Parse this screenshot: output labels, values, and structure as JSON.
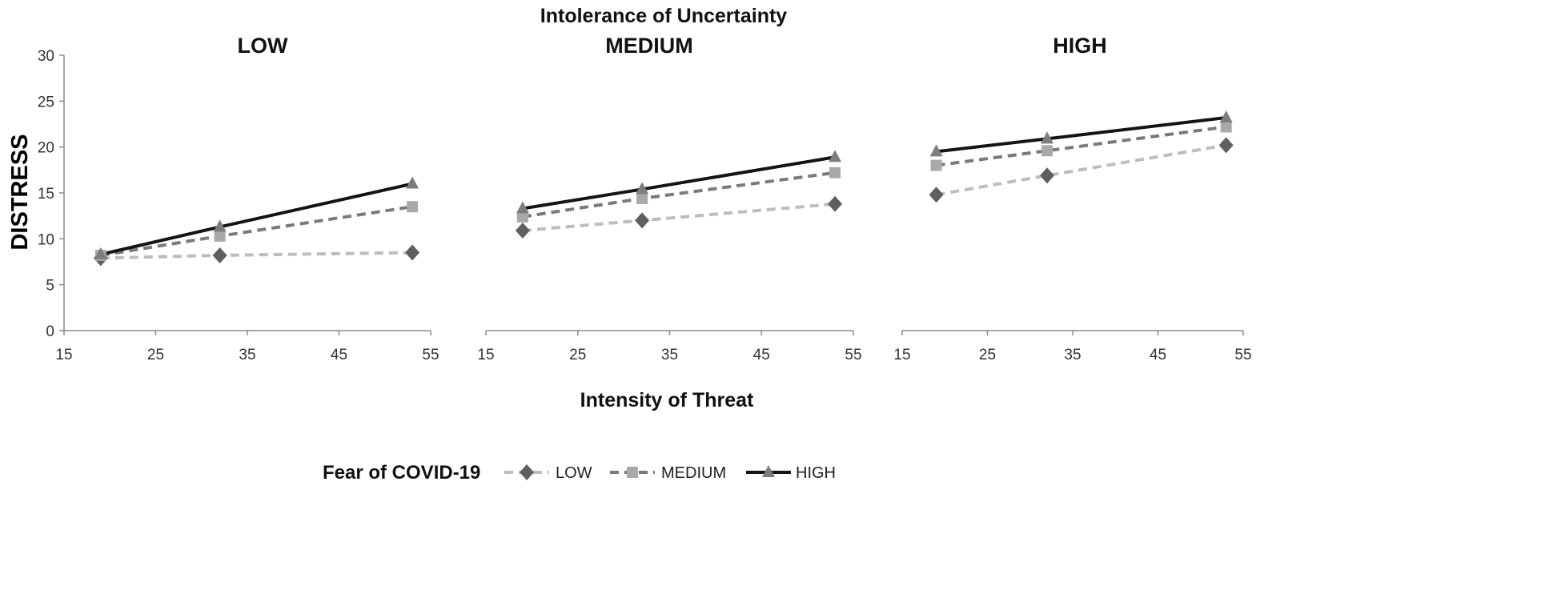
{
  "chart_data": {
    "type": "line",
    "suptitle": "Intolerance of Uncertainty",
    "xlabel": "Intensity of Threat",
    "ylabel": "DISTRESS",
    "xlim": [
      15,
      55
    ],
    "ylim": [
      0,
      30
    ],
    "x_ticks": [
      "15",
      "25",
      "35",
      "45",
      "55"
    ],
    "y_ticks": [
      "0",
      "5",
      "10",
      "15",
      "20",
      "25",
      "30"
    ],
    "legend": {
      "title": "Fear of COVID-19",
      "entries": [
        "LOW",
        "MEDIUM",
        "HIGH"
      ]
    },
    "series_styles": [
      {
        "name": "LOW",
        "color": "#bdbdbd",
        "marker": "diamond",
        "marker_color": "#5f5f5f",
        "dash": true,
        "width": 4
      },
      {
        "name": "MEDIUM",
        "color": "#7a7a7a",
        "marker": "square",
        "marker_color": "#a9a9a9",
        "dash": true,
        "width": 4
      },
      {
        "name": "HIGH",
        "color": "#141414",
        "marker": "triangle",
        "marker_color": "#7d7d7d",
        "dash": false,
        "width": 4
      }
    ],
    "panels": [
      {
        "title": "LOW",
        "x": [
          19,
          32,
          53
        ],
        "series": [
          {
            "name": "LOW",
            "values": [
              7.9,
              8.2,
              8.5
            ]
          },
          {
            "name": "MEDIUM",
            "values": [
              8.2,
              10.3,
              13.5
            ]
          },
          {
            "name": "HIGH",
            "values": [
              8.3,
              11.3,
              16.0
            ]
          }
        ]
      },
      {
        "title": "MEDIUM",
        "x": [
          19,
          32,
          53
        ],
        "series": [
          {
            "name": "LOW",
            "values": [
              10.9,
              12.0,
              13.8
            ]
          },
          {
            "name": "MEDIUM",
            "values": [
              12.4,
              14.4,
              17.2
            ]
          },
          {
            "name": "HIGH",
            "values": [
              13.3,
              15.4,
              18.9
            ]
          }
        ]
      },
      {
        "title": "HIGH",
        "x": [
          19,
          32,
          53
        ],
        "series": [
          {
            "name": "LOW",
            "values": [
              14.8,
              16.9,
              20.2
            ]
          },
          {
            "name": "MEDIUM",
            "values": [
              18.0,
              19.6,
              22.2
            ]
          },
          {
            "name": "HIGH",
            "values": [
              19.5,
              20.9,
              23.2
            ]
          }
        ]
      }
    ]
  }
}
